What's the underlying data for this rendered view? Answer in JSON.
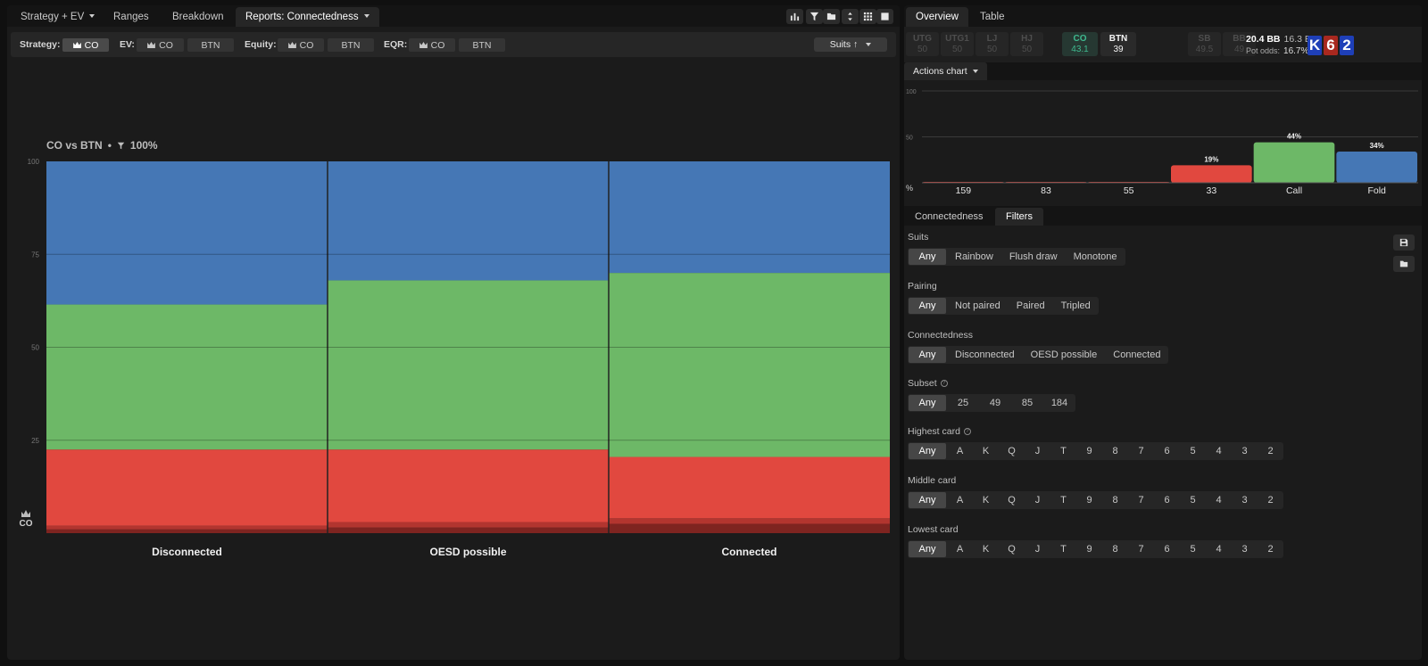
{
  "left_tabs": [
    {
      "label": "Strategy + EV",
      "dropdown": true,
      "active": false
    },
    {
      "label": "Ranges",
      "dropdown": false,
      "active": false
    },
    {
      "label": "Breakdown",
      "dropdown": false,
      "active": false
    },
    {
      "label": "Reports: Connectedness",
      "dropdown": true,
      "active": true
    }
  ],
  "toolbar": {
    "strategy_label": "Strategy:",
    "strategy_co": "CO",
    "ev_label": "EV:",
    "ev_co": "CO",
    "ev_btn": "BTN",
    "equity_label": "Equity:",
    "equity_co": "CO",
    "equity_btn": "BTN",
    "eqr_label": "EQR:",
    "eqr_co": "CO",
    "eqr_btn": "BTN",
    "suits_button": "Suits ↑"
  },
  "chart_header": {
    "title": "CO vs BTN",
    "filter_pct": "100%"
  },
  "chart_data": {
    "type": "bar",
    "stacked": true,
    "normalized_to": 100,
    "categories": [
      "Disconnected",
      "OESD possible",
      "Connected"
    ],
    "widths": [
      1,
      1,
      1
    ],
    "ylim": [
      0,
      100
    ],
    "yticks": [
      "0",
      "25",
      "50",
      "75",
      "100"
    ],
    "grid": true,
    "player_label": "CO",
    "series": [
      {
        "name": "159",
        "color": "#6e1d1a",
        "values": [
          0,
          0,
          0
        ]
      },
      {
        "name": "83",
        "color": "#7e2420",
        "values": [
          1,
          1.5,
          2.5
        ]
      },
      {
        "name": "55",
        "color": "#b2352f",
        "values": [
          1,
          1.5,
          1.5
        ]
      },
      {
        "name": "33",
        "color": "#e1483f",
        "values": [
          20.5,
          19.5,
          16.5
        ]
      },
      {
        "name": "Call",
        "color": "#6db867",
        "values": [
          39,
          45.5,
          49.5
        ]
      },
      {
        "name": "Fold",
        "color": "#4577b5",
        "values": [
          38.5,
          32,
          30
        ]
      }
    ]
  },
  "right_tabs": [
    {
      "label": "Overview",
      "active": true
    },
    {
      "label": "Table",
      "active": false
    }
  ],
  "seats": [
    {
      "pos": "UTG",
      "val": "50",
      "state": "inactive"
    },
    {
      "pos": "UTG1",
      "val": "50",
      "state": "inactive"
    },
    {
      "pos": "LJ",
      "val": "50",
      "state": "inactive"
    },
    {
      "pos": "HJ",
      "val": "50",
      "state": "inactive"
    },
    {
      "pos": "CO",
      "val": "43.1",
      "state": "co"
    },
    {
      "pos": "BTN",
      "val": "39",
      "state": "btn"
    },
    {
      "pos": "SB",
      "val": "49.5",
      "state": "inactive"
    },
    {
      "pos": "BB",
      "val": "49",
      "state": "inactive"
    }
  ],
  "stack": {
    "pot_bb": "20.4 BB",
    "eff_bb": "16.3 BB",
    "pot_odds_label": "Pot odds:",
    "pot_odds": "16.7%"
  },
  "board": [
    {
      "rank": "K",
      "color": "#1e3fb8"
    },
    {
      "rank": "6",
      "color": "#a8281f"
    },
    {
      "rank": "2",
      "color": "#1e3fb8"
    }
  ],
  "actions_chart": {
    "tab_label": "Actions chart",
    "axis_unit": "%",
    "ylim": [
      0,
      100
    ],
    "yticks": [
      "100",
      "50"
    ],
    "bars": [
      {
        "label": "159",
        "value": 0,
        "value_text": "",
        "color": "#e1483f"
      },
      {
        "label": "83",
        "value": 0,
        "value_text": "",
        "color": "#e1483f"
      },
      {
        "label": "55",
        "value": 0.5,
        "value_text": "",
        "color": "#e1483f"
      },
      {
        "label": "33",
        "value": 19,
        "value_text": "19%",
        "color": "#e1483f"
      },
      {
        "label": "Call",
        "value": 44,
        "value_text": "44%",
        "color": "#6db867"
      },
      {
        "label": "Fold",
        "value": 34,
        "value_text": "34%",
        "color": "#4577b5"
      }
    ]
  },
  "cf_tabs": [
    {
      "label": "Connectedness",
      "active": false
    },
    {
      "label": "Filters",
      "active": true
    }
  ],
  "filters": {
    "suits": {
      "label": "Suits",
      "options": [
        "Any",
        "Rainbow",
        "Flush draw",
        "Monotone"
      ]
    },
    "pairing": {
      "label": "Pairing",
      "options": [
        "Any",
        "Not paired",
        "Paired",
        "Tripled"
      ]
    },
    "connectedness": {
      "label": "Connectedness",
      "options": [
        "Any",
        "Disconnected",
        "OESD possible",
        "Connected"
      ]
    },
    "subset": {
      "label": "Subset",
      "options": [
        "Any",
        "25",
        "49",
        "85",
        "184"
      ]
    },
    "highest": {
      "label": "Highest card",
      "options": [
        "Any",
        "A",
        "K",
        "Q",
        "J",
        "T",
        "9",
        "8",
        "7",
        "6",
        "5",
        "4",
        "3",
        "2"
      ]
    },
    "middle": {
      "label": "Middle card",
      "options": [
        "Any",
        "A",
        "K",
        "Q",
        "J",
        "T",
        "9",
        "8",
        "7",
        "6",
        "5",
        "4",
        "3",
        "2"
      ]
    },
    "lowest": {
      "label": "Lowest card",
      "options": [
        "Any",
        "A",
        "K",
        "Q",
        "J",
        "T",
        "9",
        "8",
        "7",
        "6",
        "5",
        "4",
        "3",
        "2"
      ]
    }
  }
}
